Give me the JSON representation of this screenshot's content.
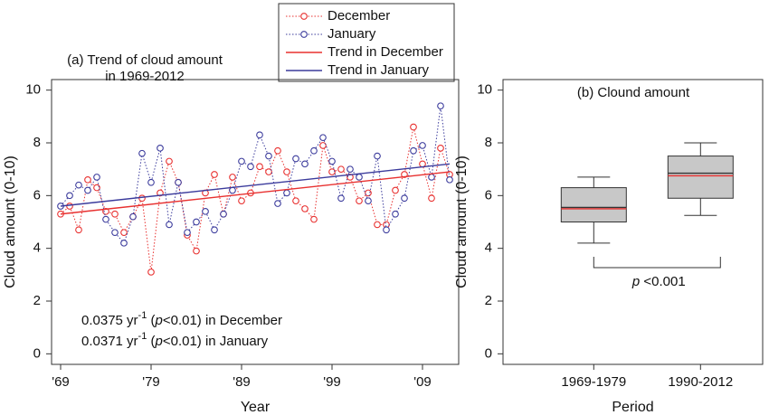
{
  "chart_data": [
    {
      "type": "line",
      "title": [
        "(a) Trend of cloud amount",
        "in 1969-2012"
      ],
      "xlabel": "Year",
      "ylabel": "Cloud amount (0-10)",
      "x": [
        1969,
        1970,
        1971,
        1972,
        1973,
        1974,
        1975,
        1976,
        1977,
        1978,
        1979,
        1980,
        1981,
        1982,
        1983,
        1984,
        1985,
        1986,
        1987,
        1988,
        1989,
        1990,
        1991,
        1992,
        1993,
        1994,
        1995,
        1996,
        1997,
        1998,
        1999,
        2000,
        2001,
        2002,
        2003,
        2004,
        2005,
        2006,
        2007,
        2008,
        2009,
        2010,
        2011,
        2012
      ],
      "series": [
        {
          "name": "December",
          "color": "#e8302f",
          "line_style": "dotted",
          "marker": "circle",
          "values": [
            5.3,
            5.6,
            4.7,
            6.6,
            6.3,
            5.4,
            5.3,
            4.6,
            5.2,
            5.9,
            3.1,
            6.1,
            7.3,
            6.5,
            4.5,
            3.9,
            6.1,
            6.8,
            5.3,
            6.7,
            5.8,
            6.1,
            7.1,
            6.9,
            7.7,
            6.9,
            5.8,
            5.5,
            5.1,
            7.9,
            6.9,
            7.0,
            6.7,
            5.8,
            6.1,
            4.9,
            4.9,
            6.2,
            6.8,
            8.6,
            7.2,
            5.9,
            7.8,
            6.8
          ]
        },
        {
          "name": "January",
          "color": "#3b3b9c",
          "line_style": "dotted",
          "marker": "circle",
          "values": [
            5.6,
            6.0,
            6.4,
            6.2,
            6.7,
            5.1,
            4.6,
            4.2,
            5.2,
            7.6,
            6.5,
            7.8,
            4.9,
            6.5,
            4.6,
            5.0,
            5.4,
            4.7,
            5.3,
            6.2,
            7.3,
            7.1,
            8.3,
            7.5,
            5.7,
            6.1,
            7.4,
            7.2,
            7.7,
            8.2,
            7.3,
            5.9,
            7.0,
            6.7,
            5.8,
            7.5,
            4.7,
            5.3,
            5.9,
            7.7,
            7.9,
            6.7,
            9.4,
            6.6
          ]
        },
        {
          "name": "Trend in December",
          "color": "#e8302f",
          "line_style": "solid",
          "x": [
            1969,
            2012
          ],
          "values": [
            5.3,
            6.9
          ]
        },
        {
          "name": "Trend in January",
          "color": "#3b3b9c",
          "line_style": "solid",
          "x": [
            1969,
            2012
          ],
          "values": [
            5.6,
            7.2
          ]
        }
      ],
      "annotations": [
        [
          "0.0375 yr",
          "-1",
          " (",
          "p",
          "<0.01) in December"
        ],
        [
          "0.0371 yr",
          "-1",
          " (",
          "p",
          "<0.01) in January"
        ]
      ],
      "xlim": [
        1968,
        2013
      ],
      "xticks": [
        {
          "value": 1969,
          "label": "'69"
        },
        {
          "value": 1979,
          "label": "'79"
        },
        {
          "value": 1989,
          "label": "'89"
        },
        {
          "value": 1999,
          "label": "'99"
        },
        {
          "value": 2009,
          "label": "'09"
        }
      ],
      "ylim": [
        -0.4,
        10.4
      ],
      "yticks": [
        0,
        2,
        4,
        6,
        8,
        10
      ],
      "legend": "top"
    },
    {
      "type": "box",
      "title": "(b) Clound amount",
      "xlabel": "Period",
      "ylabel": "Cloud amount (0-10)",
      "categories": [
        "1969-1979",
        "1990-2012"
      ],
      "min": [
        4.2,
        5.25
      ],
      "q1": [
        5.0,
        5.9
      ],
      "median": [
        5.55,
        6.85
      ],
      "q3": [
        6.3,
        7.5
      ],
      "max": [
        6.7,
        8.0
      ],
      "mean": [
        5.5,
        6.75
      ],
      "color": "#c8c8c8",
      "mean_color": "#e8302f",
      "annotation": [
        "p",
        " <0.001"
      ],
      "ylim": [
        -0.4,
        10.4
      ],
      "yticks": [
        0,
        2,
        4,
        6,
        8,
        10
      ]
    }
  ]
}
